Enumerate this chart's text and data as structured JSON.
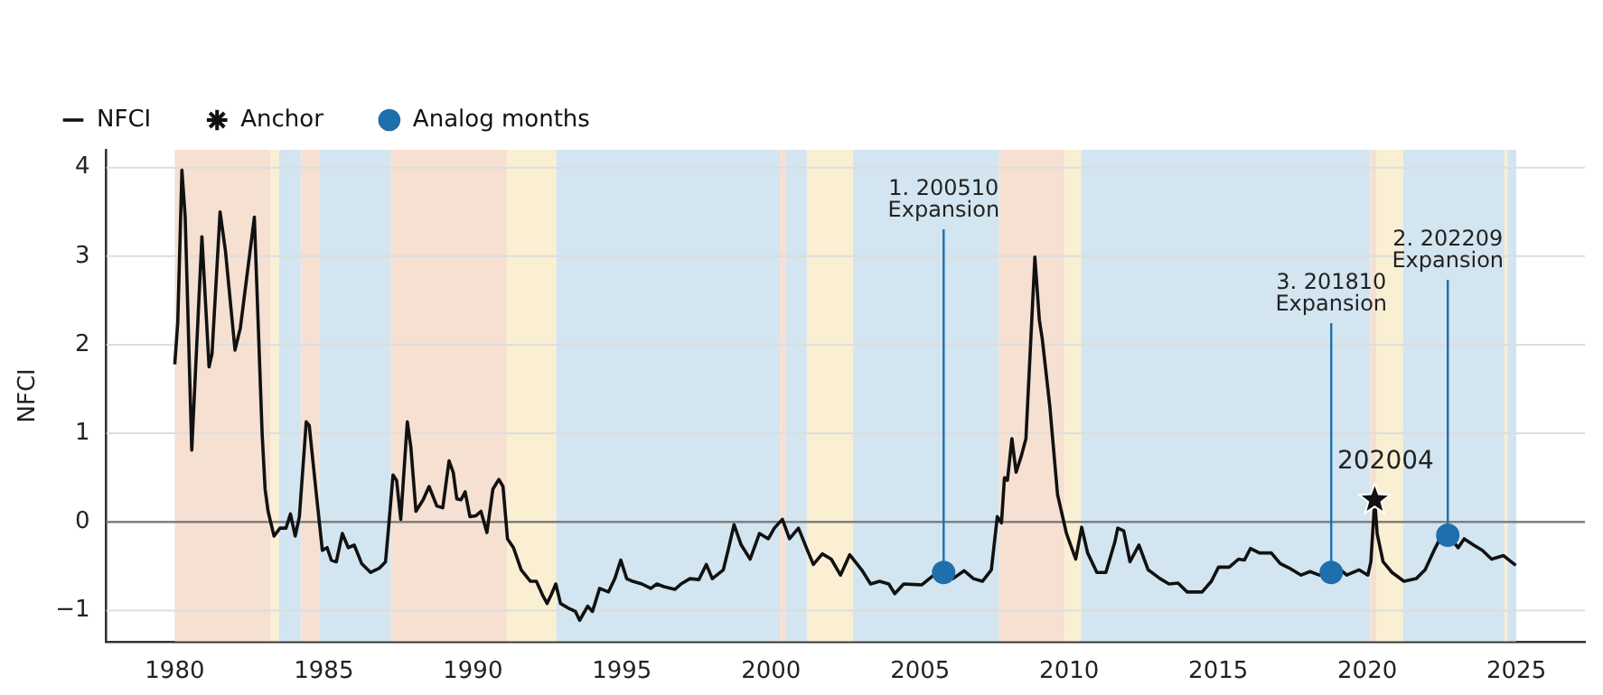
{
  "chart_data": {
    "type": "line",
    "ylabel": "NFCI",
    "xlim": [
      1977.7,
      2027.3
    ],
    "xticks": [
      1980,
      1985,
      1990,
      1995,
      2000,
      2005,
      2010,
      2015,
      2020,
      2025
    ],
    "ylim": [
      -1.35,
      4.2
    ],
    "yticks": [
      -1,
      0,
      1,
      2,
      3,
      4
    ],
    "grid": "y",
    "legend": "top left",
    "series": [
      {
        "name": "NFCI",
        "type": "line",
        "color": "#111111",
        "marker": "none",
        "line_style": "solid",
        "x": [
          1980.0,
          1980.1,
          1980.24,
          1980.35,
          1980.57,
          1980.91,
          1981.15,
          1981.25,
          1981.52,
          1981.7,
          1982.02,
          1982.2,
          1982.67,
          1982.93,
          1983.03,
          1983.13,
          1983.33,
          1983.53,
          1983.73,
          1983.88,
          1984.04,
          1984.18,
          1984.41,
          1984.51,
          1984.75,
          1984.95,
          1985.11,
          1985.25,
          1985.42,
          1985.62,
          1985.82,
          1986.02,
          1986.27,
          1986.57,
          1986.87,
          1987.07,
          1987.17,
          1987.32,
          1987.44,
          1987.58,
          1987.8,
          1987.92,
          1988.09,
          1988.33,
          1988.53,
          1988.79,
          1988.99,
          1989.2,
          1989.34,
          1989.46,
          1989.6,
          1989.74,
          1989.9,
          1990.1,
          1990.27,
          1990.47,
          1990.67,
          1990.87,
          1991.01,
          1991.16,
          1991.36,
          1991.62,
          1991.93,
          1992.13,
          1992.33,
          1992.49,
          1992.63,
          1992.78,
          1992.94,
          1993.24,
          1993.44,
          1993.58,
          1993.85,
          1994.01,
          1994.25,
          1994.55,
          1994.76,
          1994.96,
          1995.16,
          1995.36,
          1995.67,
          1995.97,
          1996.17,
          1996.41,
          1996.78,
          1996.98,
          1997.28,
          1997.58,
          1997.83,
          1998.03,
          1998.4,
          1998.56,
          1998.76,
          1999.0,
          1999.3,
          1999.61,
          1999.91,
          2000.11,
          2000.38,
          2000.62,
          2000.92,
          2001.22,
          2001.42,
          2001.72,
          2002.02,
          2002.33,
          2002.64,
          2003.04,
          2003.34,
          2003.64,
          2003.95,
          2004.15,
          2004.45,
          2005.06,
          2005.46,
          2005.79,
          2006.1,
          2006.48,
          2006.79,
          2007.09,
          2007.39,
          2007.59,
          2007.73,
          2007.83,
          2007.93,
          2008.08,
          2008.22,
          2008.4,
          2008.55,
          2008.85,
          2009.0,
          2009.1,
          2009.35,
          2009.61,
          2009.91,
          2010.22,
          2010.42,
          2010.62,
          2010.93,
          2011.23,
          2011.53,
          2011.63,
          2011.83,
          2012.04,
          2012.34,
          2012.65,
          2013.05,
          2013.35,
          2013.65,
          2013.96,
          2014.46,
          2014.77,
          2015.01,
          2015.37,
          2015.68,
          2015.88,
          2016.08,
          2016.38,
          2016.78,
          2017.08,
          2017.38,
          2017.78,
          2018.08,
          2018.39,
          2018.79,
          2019.0,
          2019.31,
          2019.72,
          2020.02,
          2020.12,
          2020.25,
          2020.33,
          2020.53,
          2020.83,
          2021.23,
          2021.64,
          2021.94,
          2022.24,
          2022.44,
          2022.7,
          2023.05,
          2023.25,
          2023.56,
          2023.86,
          2024.17,
          2024.57,
          2024.98
        ],
        "values": [
          1.78,
          2.25,
          3.97,
          3.44,
          0.81,
          3.22,
          1.75,
          1.9,
          3.5,
          3.06,
          1.94,
          2.19,
          3.44,
          1.0,
          0.37,
          0.12,
          -0.16,
          -0.07,
          -0.07,
          0.09,
          -0.16,
          0.06,
          1.13,
          1.09,
          0.31,
          -0.32,
          -0.29,
          -0.43,
          -0.45,
          -0.13,
          -0.29,
          -0.26,
          -0.47,
          -0.57,
          -0.52,
          -0.45,
          -0.07,
          0.53,
          0.47,
          0.03,
          1.13,
          0.84,
          0.12,
          0.25,
          0.4,
          0.18,
          0.16,
          0.69,
          0.56,
          0.26,
          0.25,
          0.34,
          0.06,
          0.07,
          0.12,
          -0.12,
          0.37,
          0.48,
          0.4,
          -0.19,
          -0.29,
          -0.54,
          -0.67,
          -0.67,
          -0.82,
          -0.92,
          -0.82,
          -0.7,
          -0.92,
          -0.98,
          -1.01,
          -1.11,
          -0.95,
          -1.01,
          -0.75,
          -0.79,
          -0.64,
          -0.43,
          -0.64,
          -0.67,
          -0.7,
          -0.75,
          -0.7,
          -0.73,
          -0.76,
          -0.7,
          -0.64,
          -0.65,
          -0.48,
          -0.64,
          -0.54,
          -0.32,
          -0.03,
          -0.26,
          -0.42,
          -0.13,
          -0.19,
          -0.07,
          0.03,
          -0.19,
          -0.07,
          -0.32,
          -0.48,
          -0.36,
          -0.42,
          -0.6,
          -0.37,
          -0.54,
          -0.7,
          -0.67,
          -0.7,
          -0.81,
          -0.7,
          -0.71,
          -0.6,
          -0.57,
          -0.64,
          -0.55,
          -0.64,
          -0.67,
          -0.54,
          0.06,
          -0.01,
          0.5,
          0.47,
          0.94,
          0.56,
          0.75,
          0.94,
          2.99,
          2.28,
          2.06,
          1.31,
          0.31,
          -0.13,
          -0.42,
          -0.06,
          -0.35,
          -0.57,
          -0.57,
          -0.23,
          -0.07,
          -0.1,
          -0.45,
          -0.26,
          -0.54,
          -0.64,
          -0.7,
          -0.69,
          -0.79,
          -0.79,
          -0.67,
          -0.51,
          -0.51,
          -0.42,
          -0.43,
          -0.3,
          -0.35,
          -0.35,
          -0.47,
          -0.52,
          -0.6,
          -0.56,
          -0.6,
          -0.57,
          -0.51,
          -0.6,
          -0.54,
          -0.6,
          -0.45,
          0.25,
          -0.13,
          -0.45,
          -0.57,
          -0.67,
          -0.64,
          -0.54,
          -0.32,
          -0.19,
          -0.15,
          -0.29,
          -0.19,
          -0.26,
          -0.32,
          -0.42,
          -0.38,
          -0.49
        ]
      },
      {
        "name": "Anchor",
        "type": "scatter",
        "color": "#111111",
        "marker": "star",
        "x": [
          2020.25
        ],
        "values": [
          0.25
        ]
      },
      {
        "name": "Analog months",
        "type": "scatter",
        "color": "#1f6fad",
        "marker": "circle",
        "x": [
          2005.79,
          2018.79,
          2022.7
        ],
        "values": [
          -0.57,
          -0.57,
          -0.15
        ]
      }
    ],
    "ref_lines": [
      {
        "axis": "y",
        "value": 0,
        "color": "#808080"
      }
    ],
    "bands": [
      {
        "axis": "x",
        "from": 1980.0,
        "to": 1983.2,
        "color": "#f6e0d2"
      },
      {
        "axis": "x",
        "from": 1983.2,
        "to": 1983.5,
        "color": "#faefd3"
      },
      {
        "axis": "x",
        "from": 1983.5,
        "to": 1984.25,
        "color": "#d2e5f0"
      },
      {
        "axis": "x",
        "from": 1984.25,
        "to": 1984.85,
        "color": "#f6e0d2"
      },
      {
        "axis": "x",
        "from": 1984.85,
        "to": 1987.25,
        "color": "#d2e5f0"
      },
      {
        "axis": "x",
        "from": 1987.25,
        "to": 1991.15,
        "color": "#f6e0d2"
      },
      {
        "axis": "x",
        "from": 1991.15,
        "to": 1992.8,
        "color": "#faefd3"
      },
      {
        "axis": "x",
        "from": 1992.8,
        "to": 2000.3,
        "color": "#d2e5f0"
      },
      {
        "axis": "x",
        "from": 2000.3,
        "to": 2000.5,
        "color": "#f6e0d2"
      },
      {
        "axis": "x",
        "from": 2000.5,
        "to": 2001.2,
        "color": "#d2e5f0"
      },
      {
        "axis": "x",
        "from": 2001.2,
        "to": 2002.75,
        "color": "#faefd3"
      },
      {
        "axis": "x",
        "from": 2002.75,
        "to": 2007.65,
        "color": "#d2e5f0"
      },
      {
        "axis": "x",
        "from": 2007.65,
        "to": 2009.85,
        "color": "#f6e0d2"
      },
      {
        "axis": "x",
        "from": 2009.85,
        "to": 2010.4,
        "color": "#faefd3"
      },
      {
        "axis": "x",
        "from": 2010.4,
        "to": 2020.1,
        "color": "#d2e5f0"
      },
      {
        "axis": "x",
        "from": 2020.1,
        "to": 2020.3,
        "color": "#f6e0d2"
      },
      {
        "axis": "x",
        "from": 2020.3,
        "to": 2021.2,
        "color": "#faefd3"
      },
      {
        "axis": "x",
        "from": 2021.2,
        "to": 2024.6,
        "color": "#d2e5f0"
      },
      {
        "axis": "x",
        "from": 2024.6,
        "to": 2024.7,
        "color": "#faefd3"
      },
      {
        "axis": "x",
        "from": 2024.7,
        "to": 2025.0,
        "color": "#d2e5f0"
      }
    ],
    "annotations": [
      {
        "text": "1. 200510\nExpansion",
        "x": 2005.79,
        "y": -0.57
      },
      {
        "text": "3. 201810\nExpansion",
        "x": 2018.79,
        "y": -0.57
      },
      {
        "text": "2. 202209\nExpansion",
        "x": 2022.7,
        "y": -0.15
      },
      {
        "text": "202004",
        "x": 2020.25,
        "y": 0.25
      }
    ]
  }
}
